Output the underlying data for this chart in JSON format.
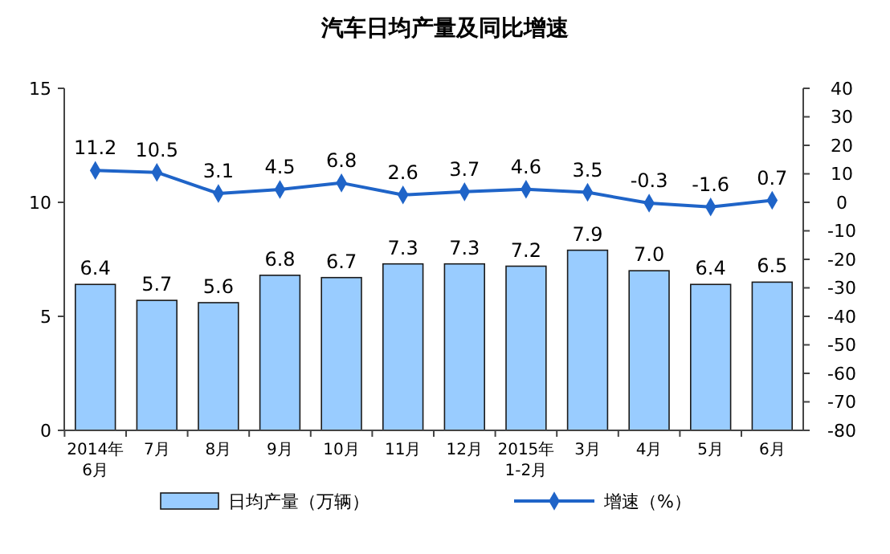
{
  "chart_data": {
    "type": "bar",
    "title": "汽车日均产量及同比增速",
    "categories": [
      "2014年\n6月",
      "7月",
      "8月",
      "9月",
      "10月",
      "11月",
      "12月",
      "2015年\n1-2月",
      "3月",
      "4月",
      "5月",
      "6月"
    ],
    "series": [
      {
        "name": "日均产量（万辆）",
        "color": "#99ccff",
        "values": [
          6.4,
          5.7,
          5.6,
          6.8,
          6.7,
          7.3,
          7.3,
          7.2,
          7.9,
          7.0,
          6.4,
          6.5
        ],
        "value_labels": [
          "6.4",
          "5.7",
          "5.6",
          "6.8",
          "6.7",
          "7.3",
          "7.3",
          "7.2",
          "7.9",
          "7.0",
          "6.4",
          "6.5"
        ]
      },
      {
        "name": "增速（%）",
        "type": "line",
        "axis": "y2",
        "color": "#1f64c8",
        "marker": "diamond",
        "values": [
          11.2,
          10.5,
          3.1,
          4.5,
          6.8,
          2.6,
          3.7,
          4.6,
          3.5,
          -0.3,
          -1.6,
          0.7
        ],
        "value_labels": [
          "11.2",
          "10.5",
          "3.1",
          "4.5",
          "6.8",
          "2.6",
          "3.7",
          "4.6",
          "3.5",
          "-0.3",
          "-1.6",
          "0.7"
        ]
      }
    ],
    "ylim": [
      0,
      15
    ],
    "yticks": [
      0,
      5,
      10,
      15
    ],
    "y2lim": [
      -80,
      40
    ],
    "y2ticks": [
      -80,
      -70,
      -60,
      -50,
      -40,
      -30,
      -20,
      -10,
      0,
      10,
      20,
      30,
      40
    ],
    "legend": "bottom",
    "grid": false
  }
}
